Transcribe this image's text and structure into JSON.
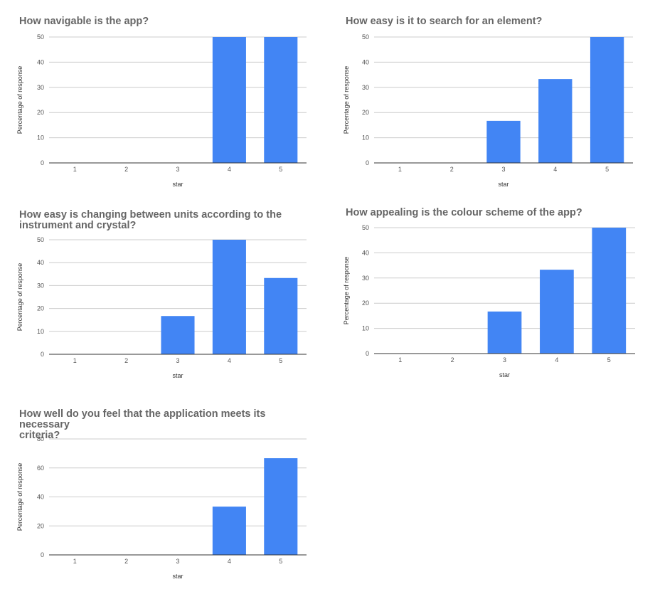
{
  "colors": {
    "bar": "#4285f4",
    "grid": "#cccccc",
    "axis": "#333333",
    "title": "#666666",
    "text": "#555555"
  },
  "chart_data": [
    {
      "type": "bar",
      "title_lines": [
        "How navigable is the app?"
      ],
      "categories": [
        "1",
        "2",
        "3",
        "4",
        "5"
      ],
      "values": [
        0,
        0,
        0,
        50,
        50
      ],
      "xlabel": "star",
      "ylabel": "Percentage of response",
      "ylim": [
        0,
        50
      ],
      "yticks": [
        0,
        10,
        20,
        30,
        40,
        50
      ],
      "grid": true,
      "legend": "none"
    },
    {
      "type": "bar",
      "title_lines": [
        "How easy is it to search for an element?"
      ],
      "categories": [
        "1",
        "2",
        "3",
        "4",
        "5"
      ],
      "values": [
        0,
        0,
        16.7,
        33.3,
        50
      ],
      "xlabel": "star",
      "ylabel": "Percentage of response",
      "ylim": [
        0,
        50
      ],
      "yticks": [
        0,
        10,
        20,
        30,
        40,
        50
      ],
      "grid": true,
      "legend": "none"
    },
    {
      "type": "bar",
      "title_lines": [
        "How easy is changing between units according to the",
        "instrument and crystal?"
      ],
      "categories": [
        "1",
        "2",
        "3",
        "4",
        "5"
      ],
      "values": [
        0,
        0,
        16.7,
        50,
        33.3
      ],
      "xlabel": "star",
      "ylabel": "Percentage of response",
      "ylim": [
        0,
        50
      ],
      "yticks": [
        0,
        10,
        20,
        30,
        40,
        50
      ],
      "grid": true,
      "legend": "none"
    },
    {
      "type": "bar",
      "title_lines": [
        "How appealing is the colour scheme of the app?"
      ],
      "categories": [
        "1",
        "2",
        "3",
        "4",
        "5"
      ],
      "values": [
        0,
        0,
        16.7,
        33.3,
        50
      ],
      "xlabel": "star",
      "ylabel": "Percentage of response",
      "ylim": [
        0,
        50
      ],
      "yticks": [
        0,
        10,
        20,
        30,
        40,
        50
      ],
      "grid": true,
      "legend": "none"
    },
    {
      "type": "bar",
      "title_lines": [
        "How well do you feel that the application meets its necessary",
        "criteria?"
      ],
      "categories": [
        "1",
        "2",
        "3",
        "4",
        "5"
      ],
      "values": [
        0,
        0,
        0,
        33.3,
        66.7
      ],
      "xlabel": "star",
      "ylabel": "Percentage of response",
      "ylim": [
        0,
        80
      ],
      "yticks": [
        0,
        20,
        40,
        60,
        80
      ],
      "grid": true,
      "legend": "none"
    }
  ]
}
